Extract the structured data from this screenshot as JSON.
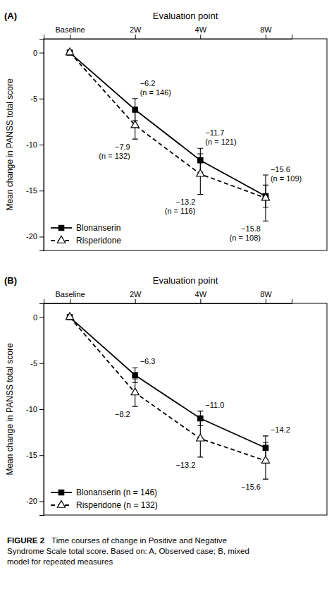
{
  "chart_data": [
    {
      "type": "line",
      "panel_label": "(A)",
      "title": "Evaluation point",
      "y_label": "Mean change in PANSS total score",
      "categories": [
        "Baseline",
        "2W",
        "4W",
        "8W"
      ],
      "ylim": [
        -21.5,
        1.5
      ],
      "yticks": [
        0,
        -5,
        -10,
        -15,
        -20
      ],
      "legend": "lower left",
      "grid": false,
      "series": [
        {
          "name": "Blonanserin",
          "color": "#000000",
          "line_style": "solid",
          "marker": "square",
          "values": [
            0,
            -6.2,
            -11.7,
            -15.6
          ],
          "errors": [
            0.0,
            1.2,
            1.3,
            1.2
          ],
          "annotations": [
            {
              "x": "2W",
              "text": [
                "−6.2",
                "(n = 146)"
              ]
            },
            {
              "x": "4W",
              "text": [
                "−11.7",
                "(n = 121)"
              ]
            },
            {
              "x": "8W",
              "text": [
                "−15.6",
                "(n = 109)"
              ]
            }
          ]
        },
        {
          "name": "Risperidone",
          "color": "#000000",
          "line_style": "dashed",
          "marker": "triangle-open",
          "values": [
            0,
            -7.9,
            -13.2,
            -15.8
          ],
          "errors": [
            0.0,
            1.5,
            2.2,
            2.5
          ],
          "annotations": [
            {
              "x": "2W",
              "text": [
                "−7.9",
                "(n = 132)"
              ]
            },
            {
              "x": "4W",
              "text": [
                "−13.2",
                "(n = 116)"
              ]
            },
            {
              "x": "8W",
              "text": [
                "−15.8",
                "(n = 108)"
              ]
            }
          ]
        }
      ]
    },
    {
      "type": "line",
      "panel_label": "(B)",
      "title": "Evaluation point",
      "y_label": "Mean change in PANSS total score",
      "categories": [
        "Baseline",
        "2W",
        "4W",
        "8W"
      ],
      "ylim": [
        -21.5,
        1.5
      ],
      "yticks": [
        0,
        -5,
        -10,
        -15,
        -20
      ],
      "legend": "lower left",
      "grid": false,
      "series": [
        {
          "name": "Blonanserin (n = 146)",
          "color": "#000000",
          "line_style": "solid",
          "marker": "square",
          "values": [
            0,
            -6.3,
            -11.0,
            -14.2
          ],
          "errors": [
            0.0,
            0.8,
            0.8,
            1.3
          ],
          "annotations": [
            {
              "x": "2W",
              "text": [
                "−6.3"
              ]
            },
            {
              "x": "4W",
              "text": [
                "−11.0"
              ]
            },
            {
              "x": "8W",
              "text": [
                "−14.2"
              ]
            }
          ]
        },
        {
          "name": "Risperidone (n = 132)",
          "color": "#000000",
          "line_style": "dashed",
          "marker": "triangle-open",
          "values": [
            0,
            -8.2,
            -13.2,
            -15.6
          ],
          "errors": [
            0.0,
            1.5,
            2.0,
            2.0
          ],
          "annotations": [
            {
              "x": "2W",
              "text": [
                "−8.2"
              ]
            },
            {
              "x": "4W",
              "text": [
                "−13.2"
              ]
            },
            {
              "x": "8W",
              "text": [
                "−15.6"
              ]
            }
          ]
        }
      ]
    }
  ],
  "caption": [
    "FIGURE 2",
    "Time courses of change in Positive and Negative",
    "Syndrome Scale total score. Based on: A, Observed case; B, mixed",
    "model for repeated measures"
  ]
}
